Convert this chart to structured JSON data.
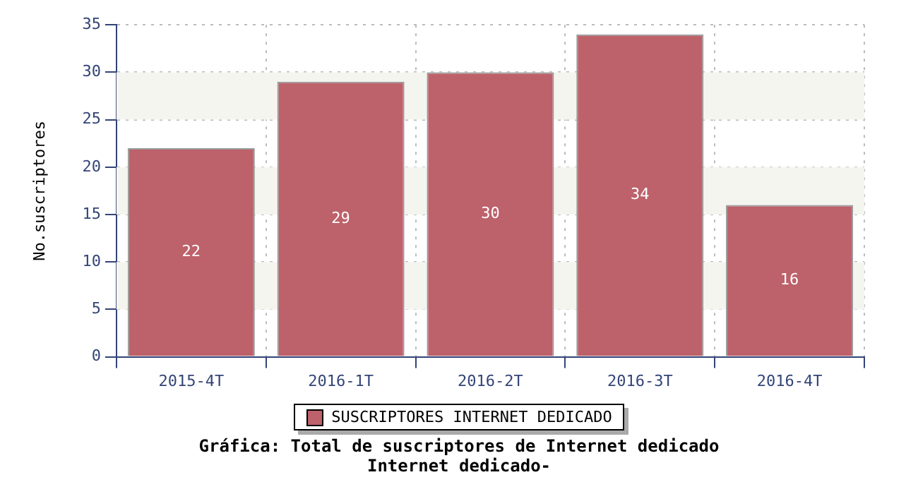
{
  "chart_data": {
    "type": "bar",
    "title": "Gráfica: Total de suscriptores de Internet dedicado",
    "subtitle": "Internet dedicado-",
    "ylabel": "No.suscriptores",
    "categories": [
      "2015-4T",
      "2016-1T",
      "2016-2T",
      "2016-3T",
      "2016-4T"
    ],
    "series": [
      {
        "name": "SUSCRIPTORES INTERNET DEDICADO",
        "color": "#bd616a",
        "values": [
          22,
          29,
          30,
          34,
          16
        ]
      }
    ],
    "ylim": [
      0,
      35
    ],
    "yticks": [
      0,
      5,
      10,
      15,
      20,
      25,
      30,
      35
    ],
    "grid": true,
    "legend": "bottom",
    "data_labels": true
  }
}
